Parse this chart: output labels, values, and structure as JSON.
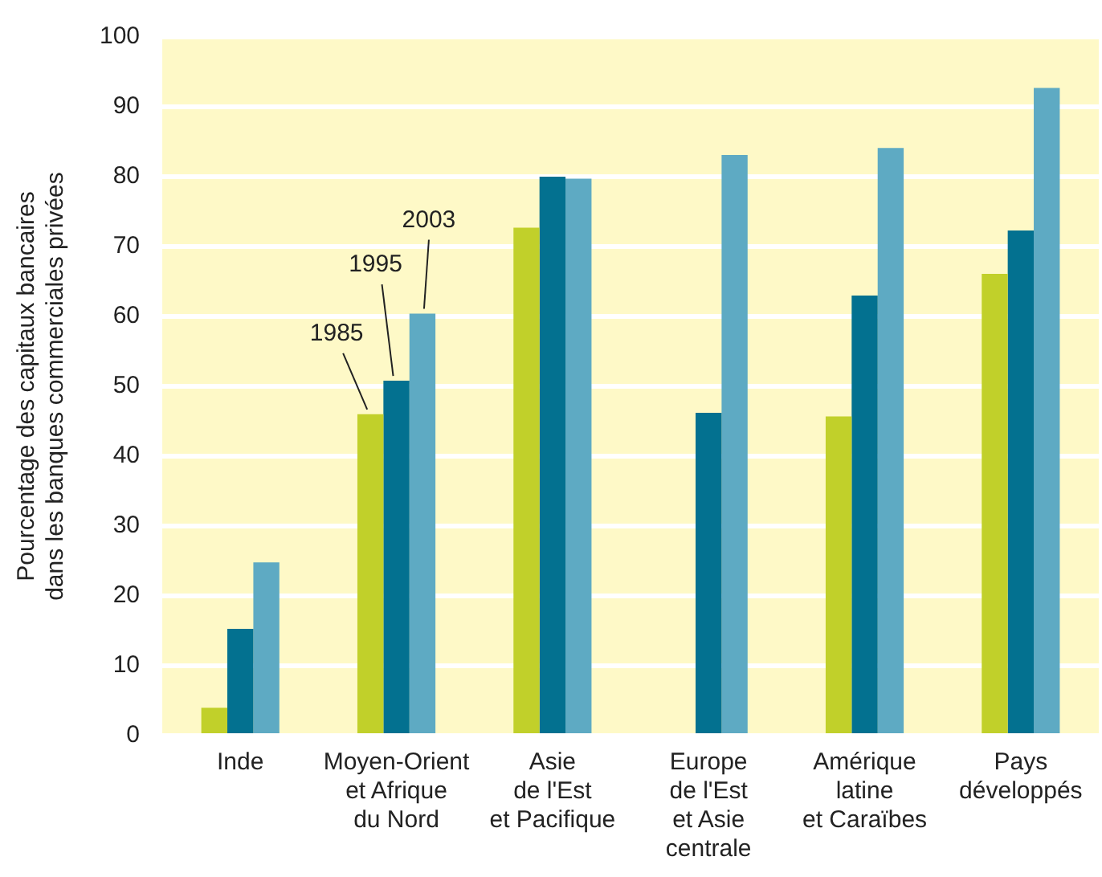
{
  "chart_data": {
    "type": "bar",
    "ylabel": "Pourcentage des capitaux bancaires\ndans les banques commerciales privées",
    "categories": [
      "Inde",
      "Moyen-Orient\net Afrique\ndu Nord",
      "Asie\nde l'Est\net Pacifique",
      "Europe\nde l'Est\net Asie\ncentrale",
      "Amérique\nlatine\net Caraïbes",
      "Pays\ndéveloppés"
    ],
    "series": [
      {
        "name": "1985",
        "color": "#c1d02a",
        "values": [
          4,
          46,
          72.7,
          null,
          45.7,
          66.1
        ]
      },
      {
        "name": "1995",
        "color": "#037190",
        "values": [
          15.3,
          50.8,
          80,
          46.2,
          63,
          72.3
        ]
      },
      {
        "name": "2003",
        "color": "#5eaac3",
        "values": [
          24.8,
          60.4,
          79.7,
          83.1,
          84.1,
          92.7
        ]
      }
    ],
    "ylim": [
      0,
      100
    ],
    "yticks": [
      0,
      10,
      20,
      30,
      40,
      50,
      60,
      70,
      80,
      90,
      100
    ],
    "grid": "y",
    "legend": false
  }
}
